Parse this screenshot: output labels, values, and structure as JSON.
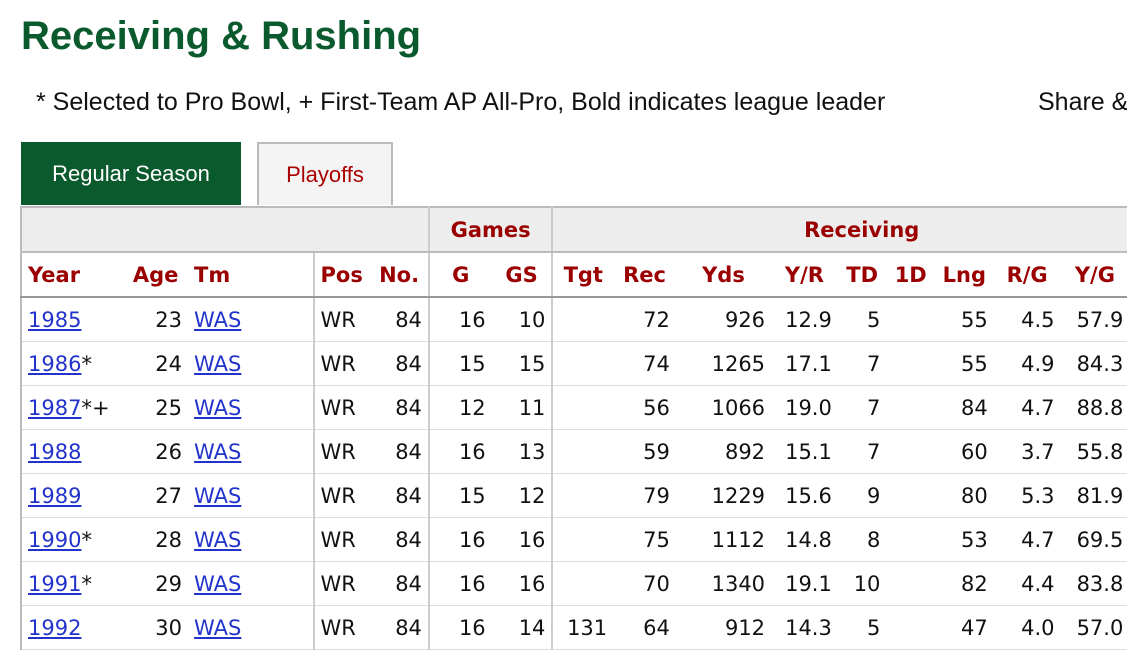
{
  "header": {
    "title": "Receiving & Rushing",
    "note": "* Selected to Pro Bowl, + First-Team AP All-Pro, Bold indicates league leader",
    "share": "Share &"
  },
  "tabs": [
    "Regular Season",
    "Playoffs"
  ],
  "table": {
    "groups": [
      "Games",
      "Receiving"
    ],
    "columns": [
      "Year",
      "Age",
      "Tm",
      "Pos",
      "No.",
      "G",
      "GS",
      "Tgt",
      "Rec",
      "Yds",
      "Y/R",
      "TD",
      "1D",
      "Lng",
      "R/G",
      "Y/G"
    ],
    "rows": [
      {
        "cells": [
          "1985",
          "23",
          "WAS",
          "WR",
          "84",
          "16",
          "10",
          null,
          "72",
          "926",
          "12.9",
          "5",
          null,
          "55",
          "4.5",
          "57.9"
        ]
      },
      {
        "honors": "*",
        "cells": [
          "1986",
          "24",
          "WAS",
          "WR",
          "84",
          "15",
          "15",
          null,
          "74",
          "1265",
          "17.1",
          "7",
          null,
          "55",
          "4.9",
          "84.3"
        ]
      },
      {
        "honors": "*+",
        "cells": [
          "1987",
          "25",
          "WAS",
          "WR",
          "84",
          "12",
          "11",
          null,
          "56",
          "1066",
          "19.0",
          "7",
          null,
          "84",
          "4.7",
          "88.8"
        ]
      },
      {
        "cells": [
          "1988",
          "26",
          "WAS",
          "WR",
          "84",
          "16",
          "13",
          null,
          "59",
          "892",
          "15.1",
          "7",
          null,
          "60",
          "3.7",
          "55.8"
        ]
      },
      {
        "cells": [
          "1989",
          "27",
          "WAS",
          "WR",
          "84",
          "15",
          "12",
          null,
          "79",
          "1229",
          "15.6",
          "9",
          null,
          "80",
          "5.3",
          "81.9"
        ]
      },
      {
        "honors": "*",
        "cells": [
          "1990",
          "28",
          "WAS",
          "WR",
          "84",
          "16",
          "16",
          null,
          "75",
          "1112",
          "14.8",
          "8",
          null,
          "53",
          "4.7",
          "69.5"
        ]
      },
      {
        "honors": "*",
        "cells": [
          "1991",
          "29",
          "WAS",
          "WR",
          "84",
          "16",
          "16",
          null,
          "70",
          "1340",
          "19.1",
          "10",
          null,
          "82",
          "4.4",
          "83.8"
        ]
      },
      {
        "cells": [
          "1992",
          "30",
          "WAS",
          "WR",
          "84",
          "16",
          "14",
          "131",
          "64",
          "912",
          "14.3",
          "5",
          null,
          "47",
          "4.0",
          "57.0"
        ]
      }
    ]
  }
}
